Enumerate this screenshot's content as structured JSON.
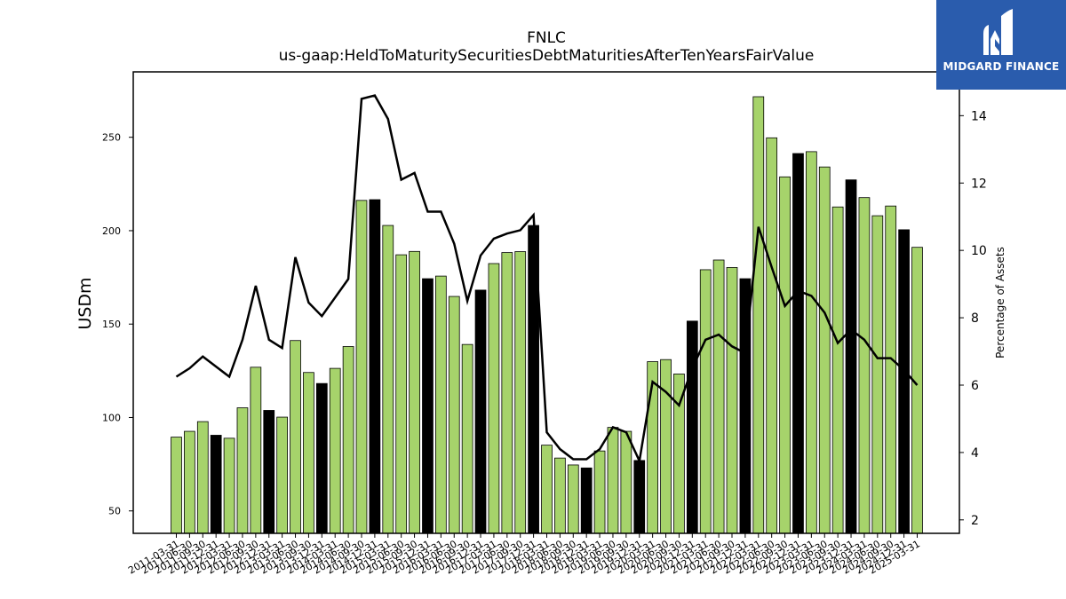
{
  "chart_data": {
    "type": "bar",
    "title": "FNLC",
    "subtitle": "us-gaap:HeldToMaturitySecuritiesDebtMaturitiesAfterTenYearsFairValue",
    "ylabel": "USDm",
    "y2label": "Percentage of Assets",
    "ylim": [
      38,
      285
    ],
    "y2lim": [
      1.6,
      15.3
    ],
    "yticks": [
      50,
      100,
      150,
      200,
      250
    ],
    "y2ticks": [
      2,
      4,
      6,
      8,
      10,
      12,
      14
    ],
    "grid": false,
    "categories": [
      "2011-03-31",
      "2011-06-30",
      "2011-09-30",
      "2011-12-31",
      "2012-03-31",
      "2012-06-30",
      "2012-09-30",
      "2012-12-31",
      "2013-03-31",
      "2013-06-30",
      "2013-09-30",
      "2013-12-31",
      "2014-03-31",
      "2014-06-30",
      "2014-09-30",
      "2014-12-31",
      "2015-03-31",
      "2015-06-30",
      "2015-09-30",
      "2015-12-31",
      "2016-03-31",
      "2016-06-30",
      "2016-09-30",
      "2016-12-31",
      "2017-03-31",
      "2017-06-30",
      "2017-09-30",
      "2017-12-31",
      "2018-03-31",
      "2018-06-30",
      "2018-09-30",
      "2018-12-31",
      "2019-03-31",
      "2019-06-30",
      "2019-09-30",
      "2019-12-31",
      "2020-03-31",
      "2020-06-30",
      "2020-09-30",
      "2020-12-31",
      "2021-03-31",
      "2021-06-30",
      "2021-09-30",
      "2021-12-31",
      "2022-03-31",
      "2022-06-30",
      "2022-09-30",
      "2022-12-31",
      "2023-03-31",
      "2023-06-30",
      "2023-09-30",
      "2023-12-31",
      "2024-03-31",
      "2024-06-30",
      "2024-09-30",
      "2024-12-31",
      "2025-03-31"
    ],
    "series": [
      {
        "type": "bar",
        "values": [
          89.5,
          92.6,
          97.8,
          90.5,
          88.9,
          105.2,
          126.9,
          103.8,
          100.2,
          141.2,
          124.1,
          118.2,
          126.3,
          138.0,
          216.2,
          216.6,
          202.8,
          187.1,
          188.9,
          174.3,
          175.7,
          164.8,
          139.1,
          168.2,
          182.4,
          188.3,
          188.8,
          202.8,
          85.2,
          78.3,
          74.6,
          73.0,
          82.1,
          94.7,
          92.6,
          77.0,
          129.9,
          131.0,
          123.3,
          151.6,
          179.1,
          184.3,
          180.3,
          174.3,
          271.7,
          249.7,
          228.8,
          241.3,
          242.3,
          234.1,
          212.7,
          227.2,
          217.7,
          208.0,
          213.2,
          200.5,
          191.1
        ],
        "highlight": [
          false,
          false,
          false,
          true,
          false,
          false,
          false,
          true,
          false,
          false,
          false,
          true,
          false,
          false,
          false,
          true,
          false,
          false,
          false,
          true,
          false,
          false,
          false,
          true,
          false,
          false,
          false,
          true,
          false,
          false,
          false,
          true,
          false,
          false,
          false,
          true,
          false,
          false,
          false,
          true,
          false,
          false,
          false,
          true,
          false,
          false,
          false,
          true,
          false,
          false,
          false,
          true,
          false,
          false,
          false,
          true,
          false
        ]
      },
      {
        "type": "line",
        "axis": "right",
        "values": [
          6.25,
          6.5,
          6.85,
          6.55,
          6.25,
          7.35,
          8.95,
          7.35,
          7.1,
          9.8,
          8.45,
          8.05,
          8.6,
          9.15,
          14.5,
          14.6,
          13.9,
          12.1,
          12.3,
          11.15,
          11.15,
          10.2,
          8.5,
          9.85,
          10.35,
          10.5,
          10.6,
          11.05,
          4.6,
          4.1,
          3.8,
          3.8,
          4.1,
          4.75,
          4.6,
          3.75,
          6.1,
          5.8,
          5.4,
          6.5,
          7.35,
          7.5,
          7.15,
          6.95,
          10.7,
          9.5,
          8.35,
          8.8,
          8.65,
          8.15,
          7.25,
          7.65,
          7.35,
          6.8,
          6.8,
          6.45,
          6.0
        ]
      }
    ]
  },
  "logo": {
    "text": "MIDGARD FINANCE",
    "bg": "#2a5cad"
  },
  "colors": {
    "bar": "#a6d36b",
    "bar_highlight": "#000000",
    "line": "#000000",
    "edge": "#000000"
  }
}
